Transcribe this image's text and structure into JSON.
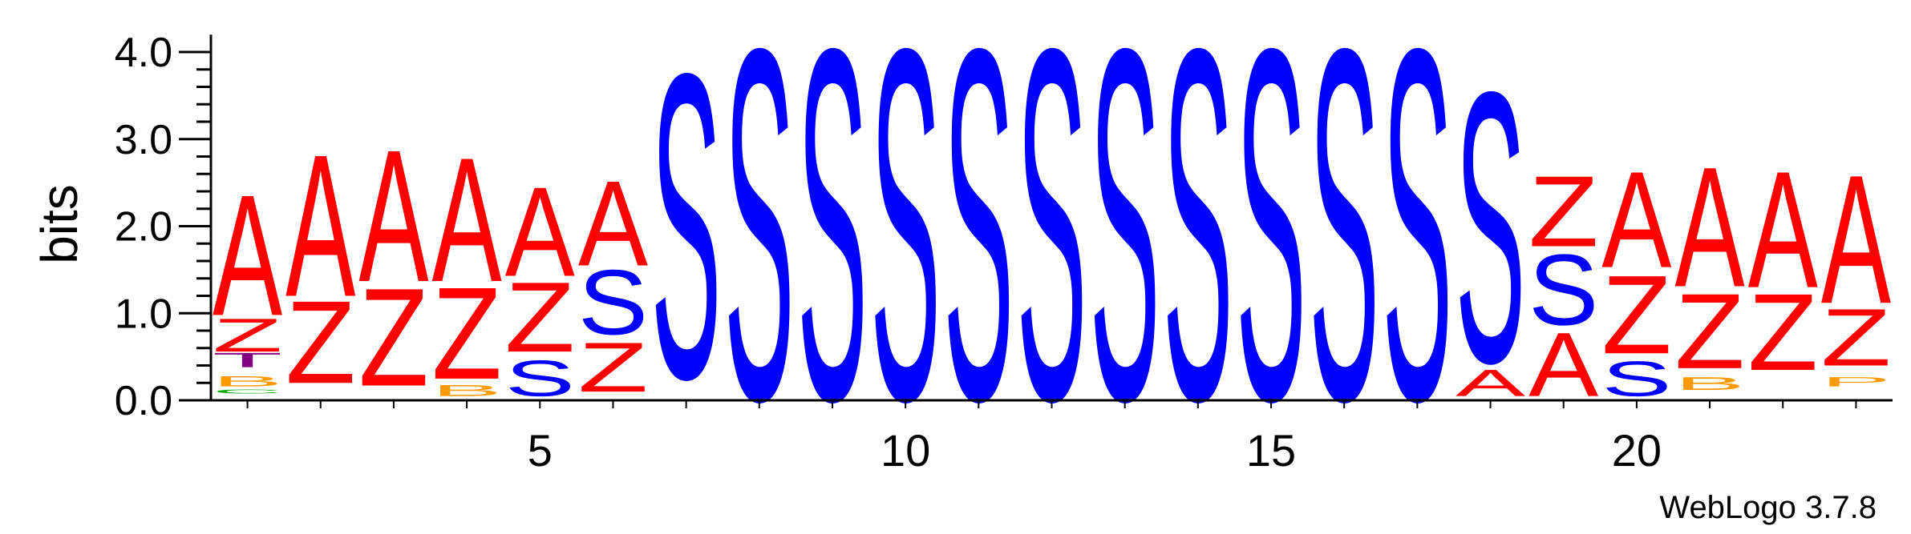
{
  "chart_data": {
    "type": "sequence-logo",
    "ylabel": "bits",
    "ylim": [
      0,
      4.2
    ],
    "y_ticks": [
      "0.0",
      "1.0",
      "2.0",
      "3.0",
      "4.0"
    ],
    "x_ticks": [
      "5",
      "10",
      "15",
      "20"
    ],
    "x_tick_positions": [
      5,
      10,
      15,
      20
    ],
    "credit": "WebLogo 3.7.8",
    "colors": {
      "A": "#ff0000",
      "Z": "#ff0000",
      "S": "#0000ff",
      "B": "#ff9900",
      "T": "#800080",
      "C": "#00aa00",
      "P": "#ff9900",
      "O": "#ff9900"
    },
    "positions": [
      {
        "pos": 1,
        "stack": [
          {
            "letter": "C",
            "start": 0.08,
            "end": 0.13
          },
          {
            "letter": "B",
            "start": 0.16,
            "end": 0.28
          },
          {
            "letter": "T",
            "start": 0.38,
            "end": 0.55
          },
          {
            "letter": "Z",
            "start": 0.56,
            "end": 0.95
          },
          {
            "letter": "A",
            "start": 0.98,
            "end": 2.4
          }
        ]
      },
      {
        "pos": 2,
        "stack": [
          {
            "letter": "Z",
            "start": 0.2,
            "end": 1.17
          },
          {
            "letter": "A",
            "start": 1.2,
            "end": 2.87
          }
        ]
      },
      {
        "pos": 3,
        "stack": [
          {
            "letter": "Z",
            "start": 0.17,
            "end": 1.32
          },
          {
            "letter": "A",
            "start": 1.37,
            "end": 2.92
          }
        ]
      },
      {
        "pos": 4,
        "stack": [
          {
            "letter": "B",
            "start": 0.05,
            "end": 0.18
          },
          {
            "letter": "Z",
            "start": 0.25,
            "end": 1.33
          },
          {
            "letter": "A",
            "start": 1.37,
            "end": 2.83
          }
        ]
      },
      {
        "pos": 5,
        "stack": [
          {
            "letter": "S",
            "start": 0.05,
            "end": 0.47
          },
          {
            "letter": "Z",
            "start": 0.56,
            "end": 1.38
          },
          {
            "letter": "A",
            "start": 1.43,
            "end": 2.48
          }
        ]
      },
      {
        "pos": 6,
        "stack": [
          {
            "letter": "Z",
            "start": 0.1,
            "end": 0.68
          },
          {
            "letter": "S",
            "start": 0.76,
            "end": 1.52
          },
          {
            "letter": "A",
            "start": 1.55,
            "end": 2.55
          }
        ]
      },
      {
        "pos": 7,
        "stack": [
          {
            "letter": "S",
            "start": 0.27,
            "end": 3.85
          }
        ]
      },
      {
        "pos": 8,
        "stack": [
          {
            "letter": "S",
            "start": 0.02,
            "end": 4.15
          }
        ]
      },
      {
        "pos": 9,
        "stack": [
          {
            "letter": "S",
            "start": 0.02,
            "end": 4.15
          }
        ]
      },
      {
        "pos": 10,
        "stack": [
          {
            "letter": "S",
            "start": 0.02,
            "end": 4.15
          }
        ]
      },
      {
        "pos": 11,
        "stack": [
          {
            "letter": "S",
            "start": 0.02,
            "end": 4.15
          }
        ]
      },
      {
        "pos": 12,
        "stack": [
          {
            "letter": "S",
            "start": 0.02,
            "end": 4.15
          }
        ]
      },
      {
        "pos": 13,
        "stack": [
          {
            "letter": "S",
            "start": 0.02,
            "end": 4.15
          }
        ]
      },
      {
        "pos": 14,
        "stack": [
          {
            "letter": "S",
            "start": 0.02,
            "end": 4.15
          }
        ]
      },
      {
        "pos": 15,
        "stack": [
          {
            "letter": "S",
            "start": 0.02,
            "end": 4.15
          }
        ]
      },
      {
        "pos": 16,
        "stack": [
          {
            "letter": "S",
            "start": 0.02,
            "end": 4.15
          }
        ]
      },
      {
        "pos": 17,
        "stack": [
          {
            "letter": "S",
            "start": 0.02,
            "end": 4.15
          }
        ]
      },
      {
        "pos": 18,
        "stack": [
          {
            "letter": "A",
            "start": 0.05,
            "end": 0.36
          },
          {
            "letter": "S",
            "start": 0.45,
            "end": 3.63
          }
        ]
      },
      {
        "pos": 19,
        "stack": [
          {
            "letter": "A",
            "start": 0.05,
            "end": 0.8
          },
          {
            "letter": "S",
            "start": 0.87,
            "end": 1.7
          },
          {
            "letter": "Z",
            "start": 1.77,
            "end": 2.6
          }
        ]
      },
      {
        "pos": 20,
        "stack": [
          {
            "letter": "S",
            "start": 0.05,
            "end": 0.46
          },
          {
            "letter": "Z",
            "start": 0.54,
            "end": 1.46
          },
          {
            "letter": "A",
            "start": 1.53,
            "end": 2.66
          }
        ]
      },
      {
        "pos": 21,
        "stack": [
          {
            "letter": "B",
            "start": 0.12,
            "end": 0.27
          },
          {
            "letter": "Z",
            "start": 0.37,
            "end": 1.25
          },
          {
            "letter": "A",
            "start": 1.31,
            "end": 2.72
          }
        ]
      },
      {
        "pos": 22,
        "stack": [
          {
            "letter": "Z",
            "start": 0.35,
            "end": 1.25
          },
          {
            "letter": "A",
            "start": 1.3,
            "end": 2.67
          }
        ]
      },
      {
        "pos": 23,
        "stack": [
          {
            "letter": "P",
            "start": 0.16,
            "end": 0.27
          },
          {
            "letter": "Z",
            "start": 0.4,
            "end": 1.07
          },
          {
            "letter": "A",
            "start": 1.12,
            "end": 2.63
          }
        ]
      }
    ]
  }
}
